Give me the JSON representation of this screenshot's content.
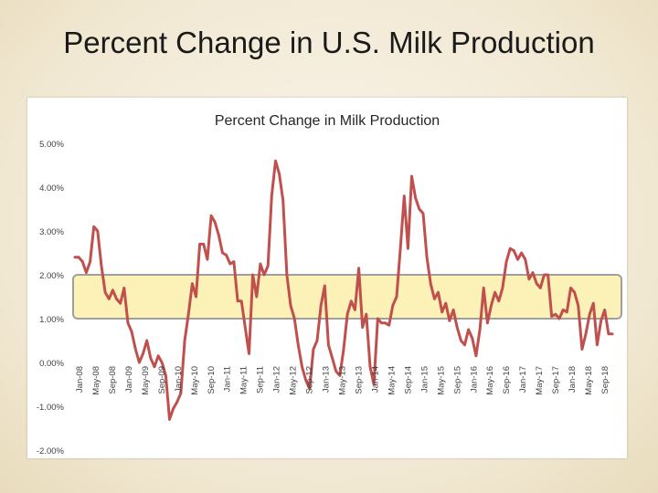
{
  "slide": {
    "title": "Percent Change in U.S. Milk Production"
  },
  "colors": {
    "line": "#c0504d",
    "band_fill": "#fbeea9",
    "band_stroke": "#9f9f9f",
    "axis_text": "#404040"
  },
  "chart_data": {
    "type": "line",
    "title": "Percent Change in Milk Production",
    "ylim": [
      -2,
      5
    ],
    "y_ticks": [
      "-2.00%",
      "-1.00%",
      "0.00%",
      "1.00%",
      "2.00%",
      "3.00%",
      "4.00%",
      "5.00%"
    ],
    "y_tick_values": [
      -2,
      -1,
      0,
      1,
      2,
      3,
      4,
      5
    ],
    "x_tick_labels": [
      "Jan-08",
      "May-08",
      "Sep-08",
      "Jan-09",
      "May-09",
      "Sep-09",
      "Jan-10",
      "May-10",
      "Sep-10",
      "Jan-11",
      "May-11",
      "Sep-11",
      "Jan-12",
      "May-12",
      "Sep-12",
      "Jan-13",
      "May-13",
      "Sep-13",
      "Jan-14",
      "May-14",
      "Sep-14",
      "Jan-15",
      "May-15",
      "Sep-15",
      "Jan-16",
      "May-16",
      "Sep-16",
      "Jan-17",
      "May-17",
      "Sep-17",
      "Jan-18",
      "May-18",
      "Sep-18"
    ],
    "highlight_band": [
      1.0,
      2.0
    ],
    "series": [
      {
        "name": "Percent Change in Milk Production",
        "values": [
          2.4,
          2.4,
          2.3,
          2.05,
          2.3,
          3.1,
          3.0,
          2.2,
          1.6,
          1.45,
          1.65,
          1.45,
          1.35,
          1.7,
          0.9,
          0.7,
          0.3,
          0.0,
          0.2,
          0.5,
          0.1,
          -0.1,
          0.15,
          0.0,
          -0.3,
          -1.3,
          -1.05,
          -0.9,
          -0.7,
          0.5,
          1.1,
          1.8,
          1.5,
          2.7,
          2.7,
          2.35,
          3.35,
          3.2,
          2.9,
          2.5,
          2.45,
          2.25,
          2.3,
          1.4,
          1.4,
          0.8,
          0.2,
          2.0,
          1.5,
          2.25,
          2.0,
          2.2,
          3.8,
          4.6,
          4.3,
          3.7,
          2.0,
          1.3,
          1.0,
          0.4,
          -0.1,
          -0.4,
          -0.6,
          0.3,
          0.5,
          1.3,
          1.75,
          0.4,
          0.1,
          -0.2,
          -0.3,
          0.3,
          1.1,
          1.4,
          1.2,
          2.15,
          0.8,
          1.1,
          -0.1,
          -0.5,
          1.0,
          0.9,
          0.9,
          0.85,
          1.3,
          1.5,
          2.6,
          3.8,
          2.6,
          4.25,
          3.75,
          3.5,
          3.4,
          2.4,
          1.8,
          1.45,
          1.6,
          1.15,
          1.35,
          0.95,
          1.2,
          0.8,
          0.5,
          0.4,
          0.75,
          0.55,
          0.15,
          0.75,
          1.7,
          0.9,
          1.3,
          1.6,
          1.4,
          1.7,
          2.3,
          2.6,
          2.55,
          2.35,
          2.5,
          2.35,
          1.9,
          2.05,
          1.8,
          1.7,
          2.0,
          2.0,
          1.05,
          1.1,
          1.0,
          1.2,
          1.15,
          1.7,
          1.6,
          1.3,
          0.3,
          0.65,
          1.1,
          1.35,
          0.4,
          0.95,
          1.2,
          0.65,
          0.65
        ]
      }
    ]
  }
}
